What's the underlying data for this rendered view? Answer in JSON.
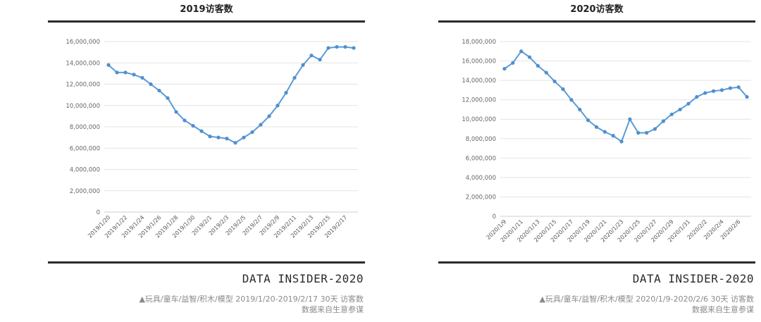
{
  "colors": {
    "series": "#5b9bd5",
    "marker": "#4f8fcf",
    "rule": "#2b2b2b",
    "caption": "#8a8a8a"
  },
  "panels": [
    {
      "title": "2019访客数",
      "brand": "DATA INSIDER-2020",
      "caption_line1": "▲玩具/童车/益智/积木/模型 2019/1/20-2019/2/17 30天 访客数",
      "caption_line2": "数据来自生意参谋"
    },
    {
      "title": "2020访客数",
      "brand": "DATA INSIDER-2020",
      "caption_line1": "▲玩具/童车/益智/积木/模型 2020/1/9-2020/2/6 30天 访客数",
      "caption_line2": "数据来自生意参谋"
    }
  ],
  "chart_data": [
    {
      "type": "line",
      "title": "2019访客数",
      "xlabel": "",
      "ylabel": "",
      "ylim": [
        0,
        16000000
      ],
      "yticks": [
        0,
        2000000,
        4000000,
        6000000,
        8000000,
        10000000,
        12000000,
        14000000,
        16000000
      ],
      "ytick_labels": [
        "0",
        "2,000,000",
        "4,000,000",
        "6,000,000",
        "8,000,000",
        "10,000,000",
        "12,000,000",
        "14,000,000",
        "16,000,000"
      ],
      "x": [
        "2019/1/20",
        "2019/1/21",
        "2019/1/22",
        "2019/1/23",
        "2019/1/24",
        "2019/1/25",
        "2019/1/26",
        "2019/1/27",
        "2019/1/28",
        "2019/1/29",
        "2019/1/30",
        "2019/1/31",
        "2019/2/1",
        "2019/2/2",
        "2019/2/3",
        "2019/2/4",
        "2019/2/5",
        "2019/2/6",
        "2019/2/7",
        "2019/2/8",
        "2019/2/9",
        "2019/2/10",
        "2019/2/11",
        "2019/2/12",
        "2019/2/13",
        "2019/2/14",
        "2019/2/15",
        "2019/2/16",
        "2019/2/17",
        "2019/2/18"
      ],
      "xtick_labels": [
        "2019/1/20",
        "2019/1/22",
        "2019/1/24",
        "2019/1/26",
        "2019/1/28",
        "2019/1/30",
        "2019/2/1",
        "2019/2/3",
        "2019/2/5",
        "2019/2/7",
        "2019/2/9",
        "2019/2/11",
        "2019/2/13",
        "2019/2/15",
        "2019/2/17"
      ],
      "values": [
        13800000,
        13100000,
        13100000,
        12900000,
        12600000,
        12000000,
        11400000,
        10700000,
        9400000,
        8600000,
        8100000,
        7600000,
        7100000,
        7000000,
        6900000,
        6500000,
        7000000,
        7500000,
        8200000,
        9000000,
        10000000,
        11200000,
        12600000,
        13800000,
        14700000,
        14300000,
        15400000,
        15500000,
        15500000,
        15400000
      ],
      "grid": true,
      "legend": "none"
    },
    {
      "type": "line",
      "title": "2020访客数",
      "xlabel": "",
      "ylabel": "",
      "ylim": [
        0,
        18000000
      ],
      "yticks": [
        0,
        2000000,
        4000000,
        6000000,
        8000000,
        10000000,
        12000000,
        14000000,
        16000000,
        18000000
      ],
      "ytick_labels": [
        "0",
        "2,000,000",
        "4,000,000",
        "6,000,000",
        "8,000,000",
        "10,000,000",
        "12,000,000",
        "14,000,000",
        "16,000,000",
        "18,000,000"
      ],
      "x": [
        "2020/1/9",
        "2020/1/10",
        "2020/1/11",
        "2020/1/12",
        "2020/1/13",
        "2020/1/14",
        "2020/1/15",
        "2020/1/16",
        "2020/1/17",
        "2020/1/18",
        "2020/1/19",
        "2020/1/20",
        "2020/1/21",
        "2020/1/22",
        "2020/1/23",
        "2020/1/24",
        "2020/1/25",
        "2020/1/26",
        "2020/1/27",
        "2020/1/28",
        "2020/1/29",
        "2020/1/30",
        "2020/1/31",
        "2020/2/1",
        "2020/2/2",
        "2020/2/3",
        "2020/2/4",
        "2020/2/5",
        "2020/2/6",
        "2020/2/7"
      ],
      "xtick_labels": [
        "2020/1/9",
        "2020/1/11",
        "2020/1/13",
        "2020/1/15",
        "2020/1/17",
        "2020/1/19",
        "2020/1/21",
        "2020/1/23",
        "2020/1/25",
        "2020/1/27",
        "2020/1/29",
        "2020/1/31",
        "2020/2/2",
        "2020/2/4",
        "2020/2/6"
      ],
      "values": [
        15200000,
        15800000,
        17000000,
        16400000,
        15500000,
        14800000,
        13900000,
        13100000,
        12000000,
        11000000,
        9900000,
        9200000,
        8700000,
        8300000,
        7700000,
        10000000,
        8600000,
        8600000,
        9000000,
        9800000,
        10500000,
        11000000,
        11600000,
        12300000,
        12700000,
        12900000,
        13000000,
        13200000,
        13300000,
        12300000
      ],
      "grid": true,
      "legend": "none"
    }
  ]
}
